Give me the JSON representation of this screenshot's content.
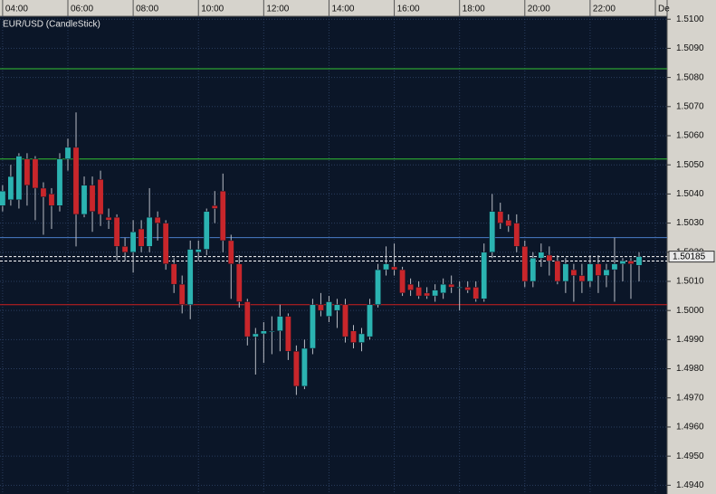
{
  "chart_data": {
    "type": "candlestick",
    "title": "EUR/USD (CandleStick)",
    "x": [
      4,
      4.25,
      4.5,
      4.75,
      5,
      5.25,
      5.5,
      5.75,
      6,
      6.25,
      6.5,
      6.75,
      7,
      7.25,
      7.5,
      7.75,
      8,
      8.25,
      8.5,
      8.75,
      9,
      9.25,
      9.5,
      9.75,
      10,
      10.25,
      10.5,
      10.75,
      11,
      11.25,
      11.5,
      11.75,
      12,
      12.25,
      12.5,
      12.75,
      13,
      13.25,
      13.5,
      13.75,
      14,
      14.25,
      14.5,
      14.75,
      15,
      15.25,
      15.5,
      15.75,
      16,
      16.25,
      16.5,
      16.75,
      17,
      17.25,
      17.5,
      17.75,
      18,
      18.25,
      18.5,
      18.75,
      19,
      19.25,
      19.5,
      19.75,
      20,
      20.25,
      20.5,
      20.75,
      21,
      21.25,
      21.5,
      21.75,
      22,
      22.25,
      22.5,
      22.75,
      23,
      23.25,
      23.5
    ],
    "open": [
      1.5036,
      1.5038,
      1.5038,
      1.5052,
      1.5052,
      1.5042,
      1.504,
      1.5036,
      1.5052,
      1.5056,
      1.5033,
      1.5043,
      1.5045,
      1.5032,
      1.5032,
      1.5022,
      1.502,
      1.5028,
      1.5022,
      1.5032,
      1.503,
      1.5016,
      1.5009,
      1.5002,
      1.502,
      1.5021,
      1.5036,
      1.5041,
      1.5024,
      1.5016,
      1.5003,
      1.4991,
      1.4992,
      1.4993,
      1.4993,
      1.4998,
      1.4986,
      1.4974,
      1.4987,
      1.5002,
      1.4998,
      1.5,
      1.5002,
      1.4993,
      1.4989,
      1.4991,
      1.5002,
      1.5014,
      1.5015,
      1.5014,
      1.5009,
      1.5008,
      1.5006,
      1.5005,
      1.5006,
      1.5009,
      1.5008,
      1.5008,
      1.5008,
      1.5004,
      1.502,
      1.5034,
      1.5031,
      1.503,
      1.5022,
      1.501,
      1.5018,
      1.5019,
      1.5017,
      1.501,
      1.5014,
      1.5012,
      1.501,
      1.5016,
      1.5012,
      1.5014,
      1.5016,
      1.5017,
      1.50155
    ],
    "high": [
      1.5043,
      1.505,
      1.5054,
      1.5054,
      1.5053,
      1.5044,
      1.5042,
      1.5054,
      1.5059,
      1.5068,
      1.5046,
      1.5046,
      1.5048,
      1.5035,
      1.5033,
      1.5025,
      1.5031,
      1.5031,
      1.5042,
      1.5034,
      1.5031,
      1.5018,
      1.5012,
      1.5024,
      1.5024,
      1.5035,
      1.5041,
      1.5047,
      1.5026,
      1.5019,
      1.5004,
      1.4994,
      1.4996,
      1.4998,
      1.5002,
      1.4999,
      1.4988,
      1.499,
      1.5004,
      1.5006,
      1.5005,
      1.5004,
      1.5004,
      1.4995,
      1.4994,
      1.5004,
      1.5016,
      1.5022,
      1.5023,
      1.5015,
      1.5011,
      1.501,
      1.5008,
      1.5009,
      1.5011,
      1.5012,
      1.501,
      1.501,
      1.501,
      1.5023,
      1.504,
      1.5037,
      1.5033,
      1.5033,
      1.5024,
      1.502,
      1.5023,
      1.5022,
      1.5019,
      1.5018,
      1.5016,
      1.5016,
      1.5019,
      1.5019,
      1.5016,
      1.5025,
      1.5018,
      1.5018,
      1.502
    ],
    "low": [
      1.5034,
      1.5036,
      1.5035,
      1.5036,
      1.5031,
      1.5026,
      1.5028,
      1.5034,
      1.5048,
      1.5022,
      1.5032,
      1.5027,
      1.5029,
      1.5028,
      1.5017,
      1.5017,
      1.5013,
      1.502,
      1.502,
      1.5024,
      1.5014,
      1.5006,
      1.4999,
      1.4997,
      1.5017,
      1.5019,
      1.503,
      1.502,
      1.5004,
      1.5001,
      1.4988,
      1.4978,
      1.4982,
      1.4985,
      1.4986,
      1.4983,
      1.4971,
      1.4973,
      1.4985,
      1.4998,
      1.4996,
      1.4994,
      1.4989,
      1.4987,
      1.4986,
      1.499,
      1.5001,
      1.5012,
      1.5012,
      1.5005,
      1.5005,
      1.5004,
      1.5004,
      1.5003,
      1.5004,
      1.5006,
      1.5,
      1.5006,
      1.5003,
      1.5003,
      1.5018,
      1.5028,
      1.5027,
      1.502,
      1.5008,
      1.5008,
      1.5015,
      1.5012,
      1.5009,
      1.5006,
      1.5003,
      1.5006,
      1.5008,
      1.5006,
      1.5008,
      1.5003,
      1.501,
      1.5004,
      1.501
    ],
    "close": [
      1.5041,
      1.5046,
      1.5053,
      1.5043,
      1.5042,
      1.5039,
      1.5036,
      1.5052,
      1.5056,
      1.5033,
      1.5043,
      1.5034,
      1.5033,
      1.5031,
      1.5022,
      1.502,
      1.5027,
      1.5022,
      1.5032,
      1.503,
      1.5016,
      1.5009,
      1.5002,
      1.5021,
      1.5021,
      1.5034,
      1.5035,
      1.5024,
      1.5016,
      1.5003,
      1.4991,
      1.4992,
      1.4993,
      1.4993,
      1.4998,
      1.4986,
      1.4974,
      1.4987,
      1.5002,
      1.5,
      1.5003,
      1.5002,
      1.4991,
      1.4989,
      1.4992,
      1.5002,
      1.5014,
      1.5016,
      1.5014,
      1.5006,
      1.5007,
      1.5005,
      1.5005,
      1.5007,
      1.5009,
      1.5008,
      1.5008,
      1.5007,
      1.5004,
      1.502,
      1.5034,
      1.503,
      1.5029,
      1.5022,
      1.501,
      1.5018,
      1.502,
      1.5017,
      1.501,
      1.5016,
      1.5012,
      1.501,
      1.5016,
      1.5012,
      1.5014,
      1.5016,
      1.5017,
      1.5016,
      1.50185
    ],
    "up_color": "#2bb3b1",
    "down_color": "#c8262b",
    "xlim": [
      3.92,
      24.36
    ],
    "ylim": [
      1.4937,
      1.5101
    ],
    "xticks": [
      {
        "value": 4,
        "label": "04:00"
      },
      {
        "value": 6,
        "label": "06:00"
      },
      {
        "value": 8,
        "label": "08:00"
      },
      {
        "value": 10,
        "label": "10:00"
      },
      {
        "value": 12,
        "label": "12:00"
      },
      {
        "value": 14,
        "label": "14:00"
      },
      {
        "value": 16,
        "label": "16:00"
      },
      {
        "value": 18,
        "label": "18:00"
      },
      {
        "value": 20,
        "label": "20:00"
      },
      {
        "value": 22,
        "label": "22:00"
      },
      {
        "value": 24,
        "label": "De"
      }
    ],
    "yticks": [
      {
        "value": 1.51,
        "label": "1.5100"
      },
      {
        "value": 1.509,
        "label": "1.5090"
      },
      {
        "value": 1.508,
        "label": "1.5080"
      },
      {
        "value": 1.507,
        "label": "1.5070"
      },
      {
        "value": 1.506,
        "label": "1.5060"
      },
      {
        "value": 1.505,
        "label": "1.5050"
      },
      {
        "value": 1.504,
        "label": "1.5040"
      },
      {
        "value": 1.503,
        "label": "1.5030"
      },
      {
        "value": 1.502,
        "label": "1.5020"
      },
      {
        "value": 1.501,
        "label": "1.5010"
      },
      {
        "value": 1.5,
        "label": "1.5000"
      },
      {
        "value": 1.499,
        "label": "1.4990"
      },
      {
        "value": 1.498,
        "label": "1.4980"
      },
      {
        "value": 1.497,
        "label": "1.4970"
      },
      {
        "value": 1.496,
        "label": "1.4960"
      },
      {
        "value": 1.495,
        "label": "1.4950"
      },
      {
        "value": 1.494,
        "label": "1.4940"
      }
    ],
    "grid": true,
    "levels": [
      {
        "value": 1.5083,
        "color": "#33c233"
      },
      {
        "value": 1.5052,
        "color": "#33c233"
      },
      {
        "value": 1.5025,
        "color": "#4a7cc9"
      },
      {
        "value": 1.50185,
        "color": "#ffffff",
        "dash": true
      },
      {
        "value": 1.5017,
        "color": "#ffffff",
        "dash": true
      },
      {
        "value": 1.5002,
        "color": "#cc1f1f"
      }
    ],
    "price_label": {
      "value": 1.50185,
      "label": "1.50185"
    }
  }
}
